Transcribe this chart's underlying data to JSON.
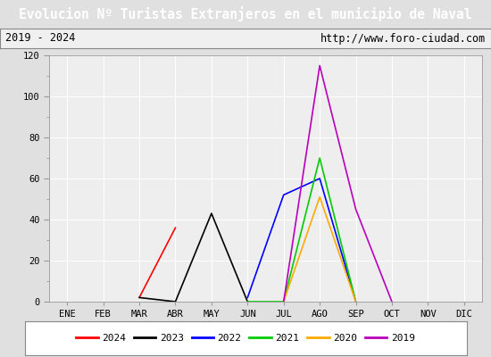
{
  "title": "Evolucion Nº Turistas Extranjeros en el municipio de Naval",
  "title_bg": "#4e86c8",
  "subtitle_left": "2019 - 2024",
  "subtitle_right": "http://www.foro-ciudad.com",
  "months": [
    "ENE",
    "FEB",
    "MAR",
    "ABR",
    "MAY",
    "JUN",
    "JUL",
    "AGO",
    "SEP",
    "OCT",
    "NOV",
    "DIC"
  ],
  "series": {
    "2024": {
      "color": "#ff0000",
      "data": [
        [
          3,
          2
        ],
        [
          4,
          36
        ]
      ]
    },
    "2023": {
      "color": "#000000",
      "data": [
        [
          3,
          2
        ],
        [
          4,
          0
        ],
        [
          5,
          43
        ],
        [
          6,
          0
        ]
      ]
    },
    "2022": {
      "color": "#0000ff",
      "data": [
        [
          6,
          2
        ],
        [
          7,
          52
        ],
        [
          8,
          60
        ],
        [
          9,
          0
        ]
      ]
    },
    "2021": {
      "color": "#00cc00",
      "data": [
        [
          6,
          0
        ],
        [
          7,
          0
        ],
        [
          8,
          70
        ],
        [
          9,
          0
        ]
      ]
    },
    "2020": {
      "color": "#ffaa00",
      "data": [
        [
          7,
          0
        ],
        [
          8,
          51
        ],
        [
          9,
          0
        ]
      ]
    },
    "2019": {
      "color": "#bb00bb",
      "data": [
        [
          7,
          0
        ],
        [
          8,
          115
        ],
        [
          9,
          45
        ],
        [
          10,
          0
        ]
      ]
    }
  },
  "year_order": [
    "2024",
    "2023",
    "2022",
    "2021",
    "2020",
    "2019"
  ],
  "ylim": [
    0,
    120
  ],
  "yticks": [
    0,
    20,
    40,
    60,
    80,
    100,
    120
  ],
  "fig_bg": "#e0e0e0",
  "plot_bg": "#eeeeee",
  "grid_color": "#ffffff",
  "subtitle_bg": "#f0f0f0",
  "title_fontsize": 10.5,
  "subtitle_fontsize": 8.5,
  "tick_fontsize": 7.5,
  "legend_fontsize": 8
}
